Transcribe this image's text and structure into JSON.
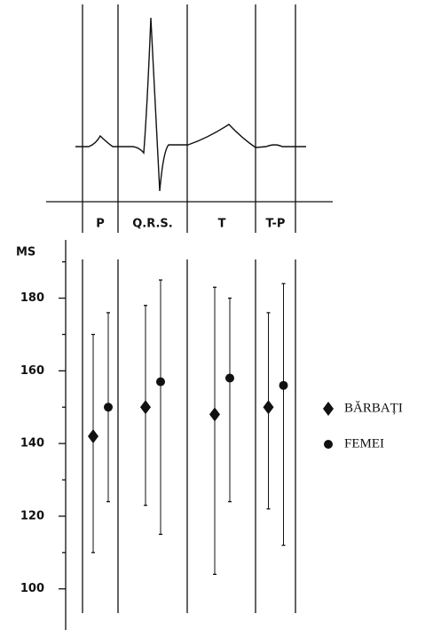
{
  "chart_data": {
    "type": "errorbar",
    "y_label": "MS",
    "categories": [
      "P",
      "Q.R.S.",
      "T",
      "T-P"
    ],
    "series": [
      {
        "name": "BĂRBAȚI",
        "marker": "diamond",
        "color": "#111",
        "values": [
          142,
          150,
          148,
          150
        ],
        "lower": [
          110,
          123,
          104,
          122
        ],
        "upper": [
          170,
          178,
          183,
          176
        ]
      },
      {
        "name": "FEMEI",
        "marker": "circle",
        "color": "#111",
        "values": [
          150,
          157,
          158,
          156
        ],
        "lower": [
          124,
          115,
          124,
          112
        ],
        "upper": [
          176,
          185,
          180,
          184
        ]
      }
    ],
    "ylim": [
      97,
      186
    ],
    "yticks": [
      100,
      120,
      140,
      160,
      180
    ]
  }
}
